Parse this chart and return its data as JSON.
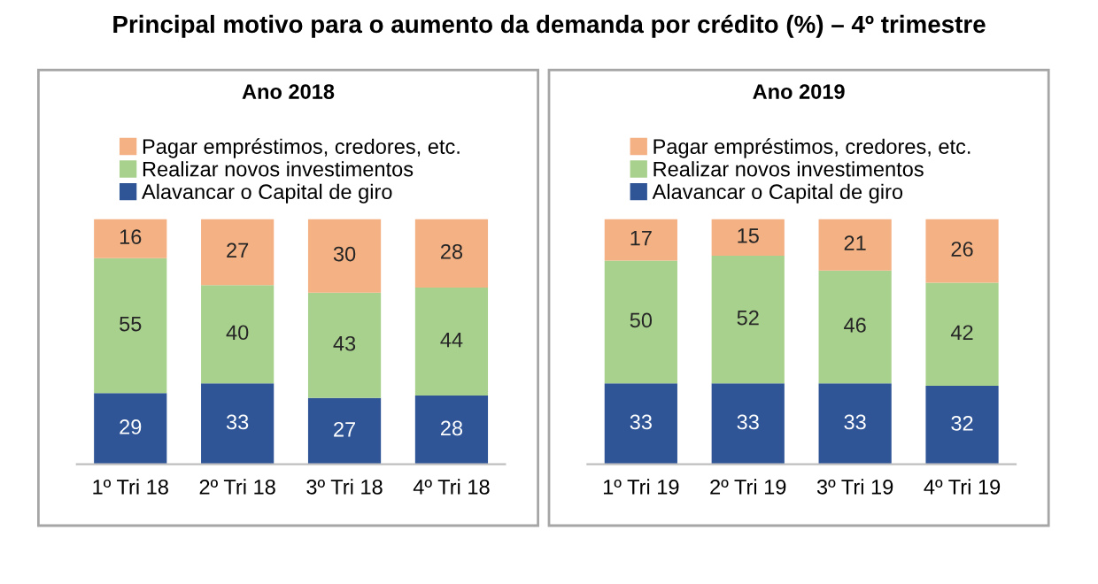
{
  "chart_data": [
    {
      "type": "bar",
      "title": "Principal motivo para o aumento da demanda por crédito (%) – 4º trimestre",
      "subtitle": "Ano 2018",
      "categories": [
        "1º Tri 18",
        "2º Tri 18",
        "3º Tri 18",
        "4º Tri 18"
      ],
      "stacked": true,
      "data_labels": true,
      "legend": "top",
      "series": [
        {
          "name": "Alavancar o Capital de giro",
          "color": "#2f5597",
          "values": [
            29,
            33,
            27,
            28
          ]
        },
        {
          "name": "Realizar novos investimentos",
          "color": "#a9d18e",
          "values": [
            55,
            40,
            43,
            44
          ]
        },
        {
          "name": "Pagar empréstimos, credores, etc.",
          "color": "#f4b183",
          "values": [
            16,
            27,
            30,
            28
          ]
        }
      ]
    },
    {
      "type": "bar",
      "subtitle": "Ano 2019",
      "categories": [
        "1º Tri 19",
        "2º Tri 19",
        "3º Tri 19",
        "4º Tri 19"
      ],
      "stacked": true,
      "data_labels": true,
      "legend": "top",
      "series": [
        {
          "name": "Alavancar o Capital de giro",
          "color": "#2f5597",
          "values": [
            33,
            33,
            33,
            32
          ]
        },
        {
          "name": "Realizar novos investimentos",
          "color": "#a9d18e",
          "values": [
            50,
            52,
            46,
            42
          ]
        },
        {
          "name": "Pagar empréstimos, credores, etc.",
          "color": "#f4b183",
          "values": [
            17,
            15,
            21,
            26
          ]
        }
      ]
    }
  ]
}
